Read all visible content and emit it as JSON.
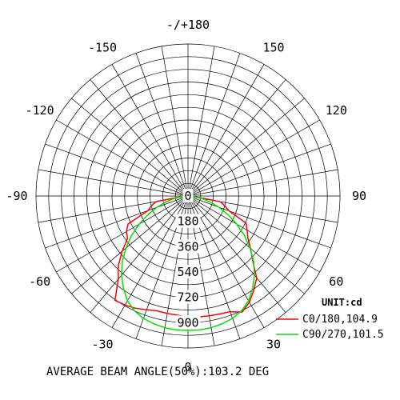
{
  "chart_data": {
    "type": "polar",
    "unit_label": "UNIT:cd",
    "caption": "AVERAGE BEAM ANGLE(50%):103.2 DEG",
    "angle_ticks": [
      {
        "angle": 0,
        "label": "0"
      },
      {
        "angle": 30,
        "label": "30"
      },
      {
        "angle": 60,
        "label": "60"
      },
      {
        "angle": 90,
        "label": "90"
      },
      {
        "angle": 120,
        "label": "120"
      },
      {
        "angle": 150,
        "label": "150"
      },
      {
        "angle": 180,
        "label": "-/+180"
      },
      {
        "angle": -150,
        "label": "-150"
      },
      {
        "angle": -120,
        "label": "-120"
      },
      {
        "angle": -90,
        "label": "-90"
      },
      {
        "angle": -60,
        "label": "-60"
      },
      {
        "angle": -30,
        "label": "-30"
      }
    ],
    "rings": [
      0,
      180,
      360,
      540,
      720,
      900
    ],
    "ring_labels": [
      "0",
      "180",
      "360",
      "540",
      "720",
      "900"
    ],
    "r_max": 1080,
    "angle_grid_step": 10,
    "series": [
      {
        "name": "C0/180,104.9",
        "color": "#ff0000",
        "angles": [
          -90,
          -85,
          -80,
          -75,
          -70,
          -65,
          -60,
          -55,
          -50,
          -45,
          -40,
          -35,
          -30,
          -25,
          -20,
          -15,
          -10,
          -5,
          0,
          5,
          10,
          15,
          20,
          25,
          30,
          35,
          40,
          45,
          50,
          55,
          60,
          65,
          70,
          75,
          80,
          85,
          90
        ],
        "values": [
          15,
          40,
          230,
          270,
          300,
          470,
          505,
          525,
          610,
          700,
          770,
          905,
          895,
          880,
          860,
          845,
          847,
          850,
          860,
          862,
          865,
          868,
          875,
          910,
          872,
          815,
          760,
          650,
          580,
          520,
          485,
          455,
          310,
          270,
          235,
          40,
          15
        ]
      },
      {
        "name": "C90/270,101.5",
        "color": "#00e000",
        "angles": [
          -90,
          -85,
          -80,
          -75,
          -70,
          -65,
          -60,
          -55,
          -50,
          -45,
          -40,
          -35,
          -30,
          -25,
          -20,
          -15,
          -10,
          -5,
          0,
          5,
          10,
          15,
          20,
          25,
          30,
          35,
          40,
          45,
          50,
          55,
          60,
          65,
          70,
          75,
          80,
          85,
          90
        ],
        "values": [
          15,
          30,
          100,
          160,
          235,
          315,
          400,
          490,
          575,
          660,
          735,
          800,
          860,
          900,
          925,
          940,
          950,
          955,
          955,
          955,
          950,
          940,
          925,
          900,
          860,
          800,
          735,
          660,
          575,
          490,
          400,
          315,
          235,
          160,
          100,
          30,
          15
        ]
      }
    ]
  }
}
